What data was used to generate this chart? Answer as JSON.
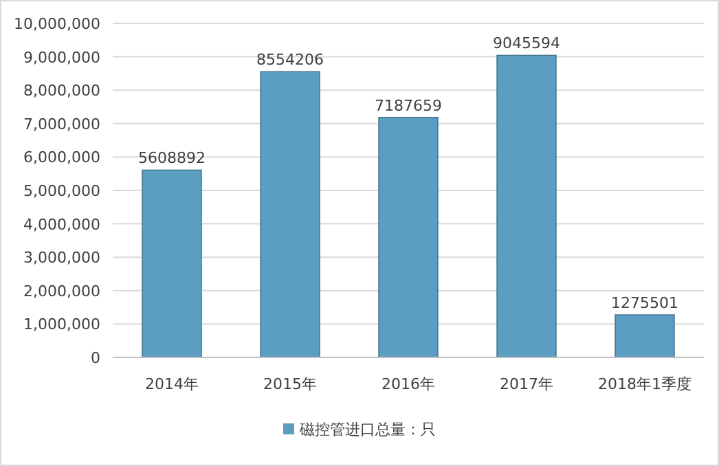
{
  "chart_data": {
    "type": "bar",
    "categories": [
      "2014年",
      "2015年",
      "2016年",
      "2017年",
      "2018年1季度"
    ],
    "series": [
      {
        "name": "磁控管进口总量：只",
        "color": "#5b9ec2",
        "values": [
          5608892,
          8554206,
          7187659,
          9045594,
          1275501
        ]
      }
    ],
    "ylim": [
      0,
      10000000
    ],
    "yticks": [
      {
        "value": 0,
        "label": "0"
      },
      {
        "value": 1000000,
        "label": "1,000,000"
      },
      {
        "value": 2000000,
        "label": "2,000,000"
      },
      {
        "value": 3000000,
        "label": "3,000,000"
      },
      {
        "value": 4000000,
        "label": "4,000,000"
      },
      {
        "value": 5000000,
        "label": "5,000,000"
      },
      {
        "value": 6000000,
        "label": "6,000,000"
      },
      {
        "value": 7000000,
        "label": "7,000,000"
      },
      {
        "value": 8000000,
        "label": "8,000,000"
      },
      {
        "value": 9000000,
        "label": "9,000,000"
      },
      {
        "value": 10000000,
        "label": "10,000,000"
      }
    ],
    "grid": "y",
    "data_labels": true,
    "legend": "bottom"
  }
}
